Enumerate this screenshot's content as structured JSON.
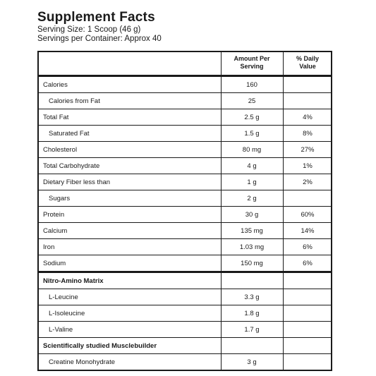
{
  "title": "Supplement Facts",
  "serving_size": "Serving Size: 1 Scoop (46 g)",
  "servings_per_container": "Servings per Container: Approx 40",
  "headers": {
    "amount_line1": "Amount Per",
    "amount_line2": "Serving",
    "dv_line1": "% Daily",
    "dv_line2": "Value"
  },
  "rows": [
    {
      "label": "Calories",
      "amount": "160",
      "dv": ""
    },
    {
      "label": "Calories from Fat",
      "amount": "25",
      "dv": ""
    },
    {
      "label": "Total Fat",
      "amount": "2.5 g",
      "dv": "4%"
    },
    {
      "label": "Saturated Fat",
      "amount": "1.5 g",
      "dv": "8%"
    },
    {
      "label": "Cholesterol",
      "amount": "80 mg",
      "dv": "27%"
    },
    {
      "label": "Total Carbohydrate",
      "amount": "4 g",
      "dv": "1%"
    },
    {
      "label": "Dietary Fiber less than",
      "amount": "1 g",
      "dv": "2%"
    },
    {
      "label": "Sugars",
      "amount": "2 g",
      "dv": ""
    },
    {
      "label": "Protein",
      "amount": "30 g",
      "dv": "60%"
    },
    {
      "label": "Calcium",
      "amount": "135 mg",
      "dv": "14%"
    },
    {
      "label": "Iron",
      "amount": "1.03 mg",
      "dv": "6%"
    },
    {
      "label": "Sodium",
      "amount": "150 mg",
      "dv": "6%"
    }
  ],
  "section1": {
    "title": "Nitro-Amino Matrix",
    "items": [
      {
        "label": "L-Leucine",
        "amount": "3.3 g"
      },
      {
        "label": "L-Isoleucine",
        "amount": "1.8 g"
      },
      {
        "label": "L-Valine",
        "amount": "1.7 g"
      }
    ]
  },
  "section2": {
    "title": "Scientifically studied Musclebuilder",
    "items": [
      {
        "label": "Creatine Monohydrate",
        "amount": "3 g"
      }
    ]
  }
}
